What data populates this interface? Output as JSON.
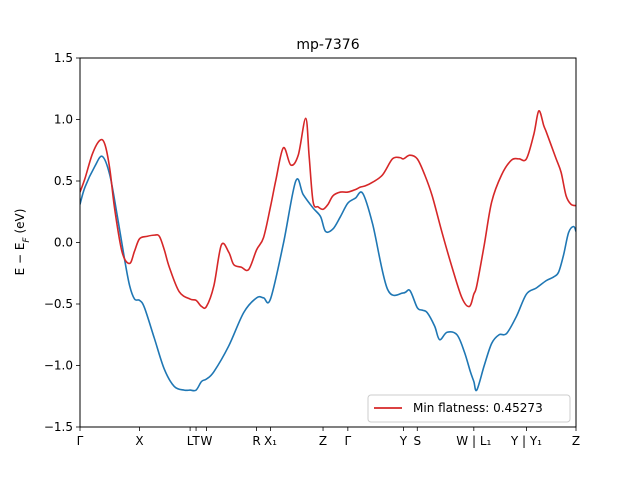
{
  "chart_data": {
    "type": "line",
    "title": "mp-7376",
    "ylabel": "E − E_F (eV)",
    "xlabel": "",
    "xlim": [
      0,
      1
    ],
    "ylim": [
      -1.5,
      1.5
    ],
    "yticks": [
      "−1.5",
      "−1.0",
      "−0.5",
      "0.0",
      "0.5",
      "1.0",
      "1.5"
    ],
    "ytick_values": [
      -1.5,
      -1.0,
      -0.5,
      0.0,
      0.5,
      1.0,
      1.5
    ],
    "xticks": [
      {
        "label": "Γ",
        "pos": 0.0
      },
      {
        "label": "X",
        "pos": 0.12
      },
      {
        "label": "L",
        "pos": 0.222
      },
      {
        "label": "T",
        "pos": 0.234
      },
      {
        "label": "W",
        "pos": 0.255
      },
      {
        "label": "R",
        "pos": 0.356
      },
      {
        "label": "X₁",
        "pos": 0.384
      },
      {
        "label": "Z",
        "pos": 0.49
      },
      {
        "label": "Γ",
        "pos": 0.54
      },
      {
        "label": "Y",
        "pos": 0.652
      },
      {
        "label": "S",
        "pos": 0.68
      },
      {
        "label": "W | L₁",
        "pos": 0.794
      },
      {
        "label": "Y | Y₁",
        "pos": 0.9
      },
      {
        "label": "Z",
        "pos": 1.0
      }
    ],
    "grid": false,
    "legend_position": "lower-right",
    "legend": [
      "Min flatness: 0.45273"
    ],
    "series": [
      {
        "name": "",
        "color": "#1f77b4",
        "x": [
          0.0,
          0.01,
          0.03,
          0.045,
          0.06,
          0.075,
          0.09,
          0.1,
          0.11,
          0.12,
          0.13,
          0.15,
          0.17,
          0.19,
          0.21,
          0.222,
          0.234,
          0.245,
          0.255,
          0.27,
          0.3,
          0.33,
          0.356,
          0.37,
          0.384,
          0.41,
          0.435,
          0.45,
          0.47,
          0.485,
          0.495,
          0.51,
          0.525,
          0.54,
          0.555,
          0.57,
          0.59,
          0.62,
          0.652,
          0.665,
          0.68,
          0.69,
          0.7,
          0.715,
          0.725,
          0.74,
          0.76,
          0.775,
          0.787,
          0.794,
          0.8,
          0.815,
          0.83,
          0.845,
          0.86,
          0.88,
          0.9,
          0.92,
          0.94,
          0.955,
          0.965,
          0.975,
          0.985,
          0.995,
          1.0
        ],
        "y": [
          0.31,
          0.45,
          0.62,
          0.7,
          0.55,
          0.22,
          -0.14,
          -0.35,
          -0.46,
          -0.47,
          -0.53,
          -0.78,
          -1.03,
          -1.17,
          -1.2,
          -1.2,
          -1.2,
          -1.13,
          -1.11,
          -1.05,
          -0.84,
          -0.57,
          -0.45,
          -0.45,
          -0.46,
          -0.01,
          0.5,
          0.39,
          0.28,
          0.21,
          0.09,
          0.11,
          0.21,
          0.32,
          0.36,
          0.4,
          0.15,
          -0.38,
          -0.41,
          -0.39,
          -0.53,
          -0.55,
          -0.57,
          -0.68,
          -0.79,
          -0.73,
          -0.75,
          -0.89,
          -1.05,
          -1.13,
          -1.2,
          -1.0,
          -0.82,
          -0.75,
          -0.74,
          -0.6,
          -0.42,
          -0.37,
          -0.31,
          -0.28,
          -0.24,
          -0.1,
          0.08,
          0.13,
          0.09
        ]
      },
      {
        "name": "Min flatness: 0.45273",
        "color": "#d62728",
        "x": [
          0.0,
          0.01,
          0.025,
          0.04,
          0.05,
          0.06,
          0.07,
          0.085,
          0.1,
          0.11,
          0.12,
          0.135,
          0.15,
          0.16,
          0.17,
          0.18,
          0.2,
          0.222,
          0.234,
          0.245,
          0.255,
          0.27,
          0.285,
          0.3,
          0.31,
          0.325,
          0.34,
          0.356,
          0.37,
          0.384,
          0.395,
          0.41,
          0.425,
          0.44,
          0.455,
          0.462,
          0.47,
          0.48,
          0.49,
          0.5,
          0.51,
          0.525,
          0.54,
          0.555,
          0.565,
          0.575,
          0.59,
          0.61,
          0.63,
          0.645,
          0.652,
          0.665,
          0.68,
          0.695,
          0.71,
          0.73,
          0.75,
          0.77,
          0.785,
          0.794,
          0.8,
          0.815,
          0.83,
          0.85,
          0.87,
          0.885,
          0.9,
          0.915,
          0.925,
          0.935,
          0.94,
          0.95,
          0.96,
          0.97,
          0.98,
          0.99,
          1.0
        ],
        "y": [
          0.41,
          0.52,
          0.72,
          0.83,
          0.8,
          0.6,
          0.27,
          -0.08,
          -0.17,
          -0.07,
          0.03,
          0.05,
          0.06,
          0.05,
          -0.06,
          -0.2,
          -0.4,
          -0.46,
          -0.47,
          -0.52,
          -0.52,
          -0.35,
          -0.02,
          -0.08,
          -0.18,
          -0.2,
          -0.22,
          -0.06,
          0.04,
          0.29,
          0.51,
          0.77,
          0.63,
          0.71,
          1.01,
          0.7,
          0.33,
          0.29,
          0.27,
          0.31,
          0.38,
          0.41,
          0.41,
          0.43,
          0.45,
          0.46,
          0.49,
          0.55,
          0.68,
          0.69,
          0.68,
          0.71,
          0.68,
          0.55,
          0.38,
          0.08,
          -0.2,
          -0.45,
          -0.52,
          -0.42,
          -0.35,
          -0.02,
          0.33,
          0.55,
          0.67,
          0.68,
          0.68,
          0.88,
          1.07,
          0.95,
          0.9,
          0.79,
          0.68,
          0.57,
          0.38,
          0.31,
          0.3
        ]
      }
    ]
  }
}
